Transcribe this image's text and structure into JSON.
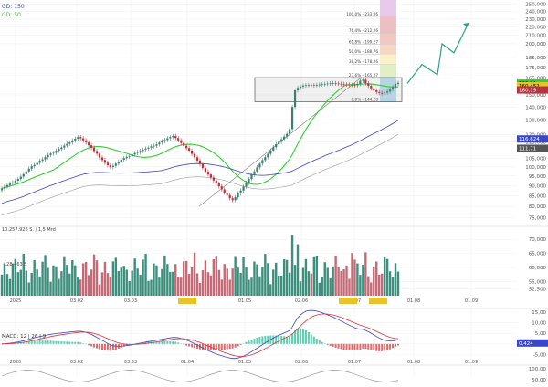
{
  "legend": {
    "sma150_label": "GD: 150",
    "sma50_label": "GD: 50",
    "sma150_color": "#3a46c8",
    "sma50_color": "#2fd02f"
  },
  "volume_readout": "10.257.926 S. / 1,5 Mrd",
  "volume_axis_readout": "128.463 S",
  "macd_label": "MACD: 12 | 26 | 9",
  "colors": {
    "up": "#3c7f6f",
    "down": "#b8323f",
    "sma50": "#2fd02f",
    "sma150": "#3a46c8",
    "sma200": "#9a9a9a",
    "macd": "#3a46c8",
    "signal": "#e0323a",
    "hist_up": "#5ccfb0",
    "hist_down": "#e26a6a",
    "projection": "#2aa589",
    "rectangle": "#555555",
    "trend": "#777777"
  },
  "price_axis": {
    "ticks": [
      "250,000",
      "240,000",
      "230,000",
      "220,000",
      "210,000",
      "200,000",
      "185,000",
      "175,000",
      "165,000",
      "155,000",
      "150,000",
      "140,000",
      "130,000",
      "120,000",
      "115,000",
      "105,000",
      "100,000",
      "95,000",
      "90,000",
      "85,000",
      "80,000",
      "75,000"
    ],
    "tick_values": [
      250,
      240,
      230,
      220,
      210,
      200,
      185,
      175,
      165,
      155,
      150,
      140,
      130,
      120,
      115,
      105,
      100,
      95,
      90,
      85,
      80,
      75
    ],
    "scale": "log",
    "range": [
      73,
      252
    ],
    "badges": [
      {
        "value": 160.21,
        "text": "160,21",
        "color": "#2fd02f",
        "text_color": "#000000"
      },
      {
        "value": 157.9,
        "text": "160,452",
        "color": "#e9c32b",
        "text_color": "#000000"
      },
      {
        "value": 154.2,
        "text": "160,19",
        "color": "#b8323f",
        "text_color": "#ffffff"
      },
      {
        "value": 117.0,
        "text": "116,624",
        "color": "#3a46c8",
        "text_color": "#ffffff"
      },
      {
        "value": 111.0,
        "text": "111,71",
        "color": "#555555",
        "text_color": "#ffffff"
      }
    ]
  },
  "volume_axis": {
    "ticks": [
      "70,000",
      "65,000",
      "60,000",
      "55,000",
      "52,500"
    ],
    "tick_values": [
      70,
      65,
      60,
      55,
      52.5
    ]
  },
  "macd_axis": {
    "ticks": [
      "15,00",
      "10,00",
      "5,00",
      "0,00",
      "-5,00"
    ],
    "tick_values": [
      15,
      10,
      5,
      0,
      -5
    ],
    "range": [
      -7,
      15
    ],
    "badge": {
      "value": 0.424,
      "text": "0,424",
      "color": "#3a46c8",
      "text_color": "#ffffff"
    }
  },
  "bottom_axis": {
    "ticks": [
      "100,00",
      "50,00"
    ],
    "tick_values": [
      100,
      50
    ]
  },
  "fibonacci": [
    {
      "label": "100,0% - 233,26",
      "value": 233.26,
      "color": "#e7c9ea"
    },
    {
      "label": "76,4% - 212,26",
      "value": 212.26,
      "color": "#ecc0c2"
    },
    {
      "label": "61,8% - 199,27",
      "value": 199.27,
      "color": "#f0c8c4"
    },
    {
      "label": "50,0% - 188,76",
      "value": 188.76,
      "color": "#f6d6c6"
    },
    {
      "label": "38,2% - 178,26",
      "value": 178.26,
      "color": "#fbf0c9"
    },
    {
      "label": "23,6% - 165,27",
      "value": 165.27,
      "color": "#dff0c6"
    },
    {
      "label": "0,0% - 144,28",
      "value": 144.28,
      "color": "#bfe0f3"
    }
  ],
  "chart_data": {
    "type": "candlestick",
    "price_scale": "log",
    "y_range": [
      73,
      252
    ],
    "x_labels": [
      "2025",
      "03.02",
      "03.03",
      "01.04",
      "01.05",
      "02.06",
      "01.07",
      "01.08",
      "01.09"
    ],
    "volume_x_labels": [
      "2025",
      "03.02",
      "03.03",
      "01.04",
      "01.05",
      "02.06",
      "27.06",
      "07",
      "15.07",
      "01.08",
      "01.09"
    ],
    "macd_x_labels": [
      "2020",
      "03.02",
      "03.03",
      "01.04",
      "01.05",
      "02.06",
      "01.07",
      "01.08",
      "01.09"
    ],
    "highlighted_dates": [
      "01.04",
      "27.06",
      "15.07"
    ],
    "close": [
      88.5,
      89.4,
      90.2,
      91.0,
      91.6,
      92.5,
      93.4,
      94.6,
      96.0,
      97.5,
      99.0,
      100.3,
      101.1,
      102.3,
      103.5,
      104.3,
      105.6,
      106.9,
      107.8,
      108.2,
      109.5,
      110.6,
      111.5,
      112.7,
      113.8,
      114.7,
      116.0,
      117.2,
      118.2,
      117.4,
      116.1,
      114.7,
      112.9,
      111.4,
      109.3,
      107.7,
      105.4,
      103.9,
      102.3,
      100.9,
      99.9,
      100.6,
      101.8,
      103.0,
      104.1,
      105.1,
      105.8,
      106.2,
      107.2,
      108.1,
      108.7,
      109.4,
      110.1,
      110.8,
      111.4,
      112.2,
      112.6,
      113.5,
      114.6,
      115.5,
      116.3,
      117.4,
      118.2,
      119.0,
      117.6,
      116.1,
      114.4,
      112.6,
      111.1,
      109.6,
      107.6,
      105.5,
      103.6,
      101.5,
      99.4,
      97.3,
      95.8,
      94.2,
      92.6,
      91.0,
      89.6,
      88.1,
      86.5,
      85.3,
      83.8,
      82.9,
      84.3,
      86.1,
      87.5,
      89.4,
      91.4,
      93.4,
      95.6,
      97.5,
      99.7,
      101.8,
      103.8,
      105.6,
      107.6,
      109.7,
      111.7,
      113.6,
      115.1,
      116.8,
      118.6,
      120.4,
      123.7,
      140.1,
      153.8,
      156.0,
      157.1,
      158.0,
      158.3,
      158.5,
      158.2,
      158.4,
      158.6,
      158.9,
      159.2,
      159.5,
      159.8,
      160.0,
      160.2,
      159.9,
      159.6,
      159.3,
      159.1,
      158.9,
      158.6,
      158.4,
      158.2,
      159.5,
      162.4,
      163.3,
      160.1,
      157.8,
      155.6,
      153.8,
      152.4,
      151.6,
      151.3,
      151.9,
      152.8,
      154.5,
      156.6,
      159.5,
      160.45
    ],
    "projection_path": [
      {
        "date": "18.07",
        "value": 160
      },
      {
        "date": "24.07",
        "value": 178
      },
      {
        "date": "29.07",
        "value": 168
      },
      {
        "date": "07.08",
        "value": 200
      },
      {
        "date": "14.08",
        "value": 190
      },
      {
        "date": "21.08",
        "value": 225
      }
    ],
    "consolidation_range": [
      144.28,
      165.27
    ],
    "series": [
      {
        "name": "GD: 150",
        "color": "#3a46c8"
      },
      {
        "name": "GD: 50",
        "color": "#2fd02f"
      }
    ],
    "panels": [
      "price",
      "volume",
      "macd",
      "oscillator"
    ]
  }
}
